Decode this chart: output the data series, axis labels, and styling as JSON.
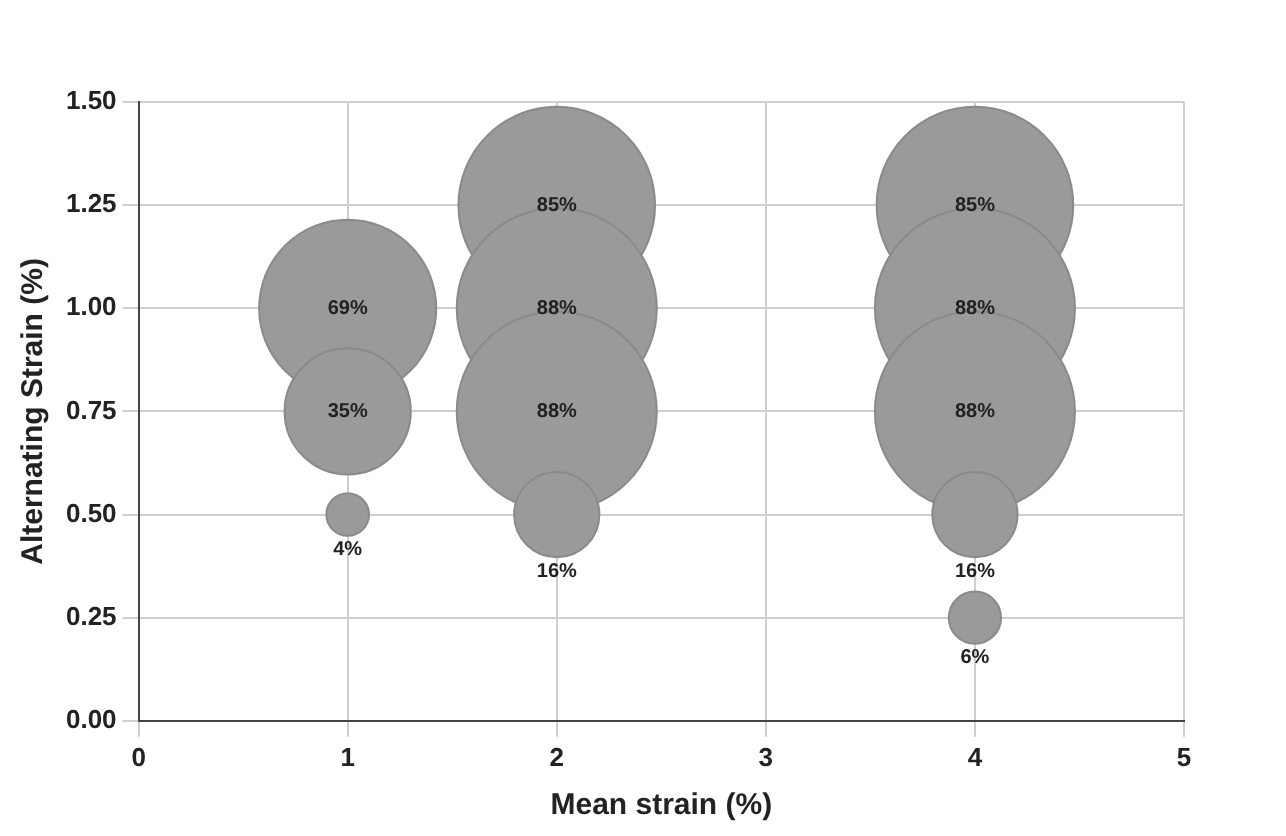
{
  "chart_data": {
    "type": "bubble",
    "xlabel": "Mean strain (%)",
    "ylabel": "Alternating Strain (%)",
    "series": [
      {
        "color": "#9a9a9a",
        "x": [
          1,
          1,
          1,
          2,
          2,
          2,
          2,
          4,
          4,
          4,
          4,
          4
        ],
        "values": [
          1.0,
          0.75,
          0.5,
          1.25,
          1.0,
          0.75,
          0.5,
          1.25,
          1.0,
          0.75,
          0.5,
          0.25
        ],
        "sizes": [
          69,
          35,
          4,
          85,
          88,
          88,
          16,
          85,
          88,
          88,
          16,
          6
        ],
        "value_labels": [
          "69%",
          "35%",
          "4%",
          "85%",
          "88%",
          "88%",
          "16%",
          "85%",
          "88%",
          "88%",
          "16%",
          "6%"
        ]
      }
    ],
    "xlim": [
      0,
      5
    ],
    "xticks": [
      0,
      1,
      2,
      3,
      4,
      5
    ],
    "ylim": [
      0,
      1.5
    ],
    "yticks": [
      {
        "value": 0,
        "label": "0.00"
      },
      {
        "value": 0.25,
        "label": "0.25"
      },
      {
        "value": 0.5,
        "label": "0.50"
      },
      {
        "value": 0.75,
        "label": "0.75"
      },
      {
        "value": 1,
        "label": "1.00"
      },
      {
        "value": 1.25,
        "label": "1.25"
      },
      {
        "value": 1.5,
        "label": "1.50"
      }
    ],
    "grid": true,
    "legend": false
  }
}
